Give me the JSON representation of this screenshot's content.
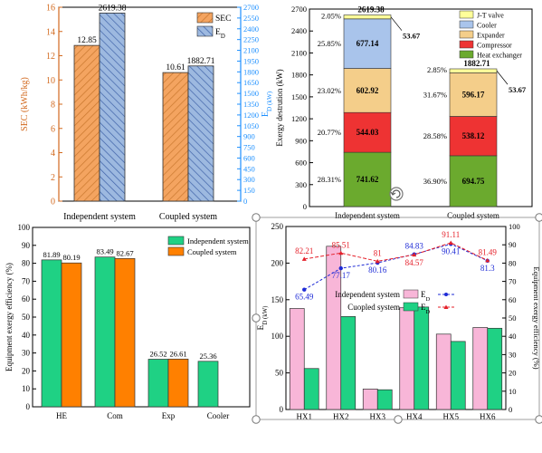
{
  "colors": {
    "sec": "#F4A460",
    "ed": "#9DB9E0",
    "sec_axis": "#D2691E",
    "ed_axis": "#1E90FF",
    "jt": "#FFFF99",
    "cooler": "#A9C4EB",
    "expander": "#F4CE8A",
    "compressor": "#EE3333",
    "heat_exchanger": "#6BAA2E",
    "independent": "#1FD184",
    "coupled": "#FF8000",
    "pink": "#F8B6D8",
    "green": "#1FD184",
    "blue_line": "#1E2BD6",
    "red_line": "#E5202A"
  },
  "chart_data": [
    {
      "type": "bar",
      "categories": [
        "Independent system",
        "Coupled system"
      ],
      "ylabel": "SEC (kWh/kg)",
      "y2label": "E_D (kW)",
      "ylim": [
        0,
        16
      ],
      "y2lim": [
        0,
        2700
      ],
      "yticks": [
        "0",
        "2",
        "4",
        "6",
        "8",
        "10",
        "12",
        "14",
        "16"
      ],
      "y2ticks": [
        "0",
        "150",
        "300",
        "450",
        "600",
        "750",
        "900",
        "1050",
        "1200",
        "1350",
        "1500",
        "1650",
        "1800",
        "1950",
        "2100",
        "2250",
        "2400",
        "2550",
        "2700"
      ],
      "legend": [
        "SEC",
        "E_D"
      ],
      "legend_position": "top-right",
      "series": [
        {
          "name": "SEC",
          "values": [
            12.85,
            10.61
          ],
          "labels": [
            "12.85",
            "10.61"
          ]
        },
        {
          "name": "E_D",
          "values": [
            2619.38,
            1882.71
          ],
          "labels": [
            "2619.38",
            "1882.71"
          ]
        }
      ]
    },
    {
      "type": "bar",
      "stacked": true,
      "categories": [
        "Independent system",
        "Coupled system"
      ],
      "ylabel": "Exergy destrution (kW)",
      "ylim": [
        0,
        2700
      ],
      "yticks": [
        "0",
        "300",
        "600",
        "900",
        "1200",
        "1500",
        "1800",
        "2100",
        "2400",
        "2700"
      ],
      "legend": [
        "J-T valve",
        "Cooler",
        "Expander",
        "Compressor",
        "Heat exchanger"
      ],
      "legend_position": "top-right",
      "series": [
        {
          "name": "Heat exchanger",
          "values": [
            741.62,
            694.75
          ],
          "labels": [
            "741.62",
            "694.75"
          ],
          "pct": [
            "28.31%",
            "36.90%"
          ]
        },
        {
          "name": "Compressor",
          "values": [
            544.03,
            538.12
          ],
          "labels": [
            "544.03",
            "538.12"
          ],
          "pct": [
            "20.77%",
            "28.58%"
          ]
        },
        {
          "name": "Expander",
          "values": [
            602.92,
            596.17
          ],
          "labels": [
            "602.92",
            "596.17"
          ],
          "pct": [
            "23.02%",
            "31.67%"
          ]
        },
        {
          "name": "Cooler",
          "values": [
            677.14,
            0
          ],
          "labels": [
            "677.14",
            ""
          ],
          "pct": [
            "25.85%",
            ""
          ]
        },
        {
          "name": "J-T valve",
          "values": [
            53.67,
            53.67
          ],
          "labels": [
            "53.67",
            "53.67"
          ],
          "pct": [
            "2.05%",
            "2.85%"
          ]
        }
      ],
      "totals": [
        "2619.38",
        "1882.71"
      ]
    },
    {
      "type": "bar",
      "categories": [
        "HE",
        "Com",
        "Exp",
        "Cooler"
      ],
      "ylabel": "Equipment exergy efficiency (%)",
      "ylim": [
        0,
        100
      ],
      "yticks": [
        "0",
        "10",
        "20",
        "30",
        "40",
        "50",
        "60",
        "70",
        "80",
        "90",
        "100"
      ],
      "legend": [
        "Independent system",
        "Coupled system"
      ],
      "legend_position": "top-right",
      "series": [
        {
          "name": "Independent system",
          "values": [
            81.89,
            83.49,
            26.52,
            25.36
          ],
          "labels": [
            "81.89",
            "83.49",
            "26.52",
            "25.36"
          ]
        },
        {
          "name": "Coupled system",
          "values": [
            80.19,
            82.67,
            26.61,
            null
          ],
          "labels": [
            "80.19",
            "82.67",
            "26.61",
            ""
          ]
        }
      ]
    },
    {
      "type": "bar",
      "categories": [
        "HX1",
        "HX2",
        "HX3",
        "HX4",
        "HX5",
        "HX6"
      ],
      "ylabel": "E_D (kW)",
      "y2label": "Equipment exergy efficiency (%)",
      "ylim": [
        0,
        250
      ],
      "y2lim": [
        0,
        100
      ],
      "yticks": [
        "0",
        "50",
        "100",
        "150",
        "200",
        "250"
      ],
      "y2ticks": [
        "0",
        "10",
        "20",
        "30",
        "40",
        "50",
        "60",
        "70",
        "80",
        "90",
        "100"
      ],
      "legend": [
        "Independent system E_D",
        "Cuopled system E_D"
      ],
      "legend_position": "center-right",
      "series": [
        {
          "name": "Independent system E_D",
          "values": [
            138,
            223,
            28,
            139,
            103,
            112
          ]
        },
        {
          "name": "Cuopled system E_D",
          "values": [
            56,
            127,
            27,
            140,
            93,
            111
          ]
        },
        {
          "name": "Independent system efficiency",
          "values": [
            65.49,
            77.17,
            80.16,
            84.83,
            90.41,
            81.3
          ],
          "labels": [
            "65.49",
            "77.17",
            "80.16",
            "84.83",
            "90.41",
            "81.3"
          ]
        },
        {
          "name": "Cuopled system efficiency",
          "values": [
            82.21,
            85.51,
            81,
            84.57,
            91.11,
            81.49
          ],
          "labels": [
            "82.21",
            "85.51",
            "81",
            "84.57",
            "91.11",
            "81.49"
          ]
        }
      ]
    }
  ]
}
